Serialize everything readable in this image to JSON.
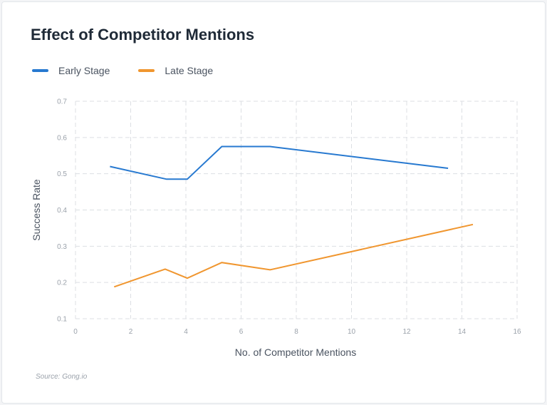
{
  "chart_data": {
    "type": "line",
    "title": "Effect of Competitor Mentions",
    "xlabel": "No. of Competitor Mentions",
    "ylabel": "Success Rate",
    "xlim": [
      0,
      16
    ],
    "ylim": [
      0.1,
      0.7
    ],
    "x_ticks": [
      "0",
      "2",
      "4",
      "6",
      "8",
      "10",
      "12",
      "14",
      "16"
    ],
    "y_ticks": [
      "0.1",
      "0.2",
      "0.3",
      "0.4",
      "0.5",
      "0.6",
      "0.7"
    ],
    "grid": true,
    "legend_position": "top-left",
    "series": [
      {
        "name": "Early Stage",
        "color": "#2779d0",
        "points": [
          [
            1.25,
            0.52
          ],
          [
            3.3,
            0.485
          ],
          [
            4.05,
            0.485
          ],
          [
            5.3,
            0.575
          ],
          [
            7.05,
            0.575
          ],
          [
            13.5,
            0.515
          ]
        ]
      },
      {
        "name": "Late Stage",
        "color": "#f0962f",
        "points": [
          [
            1.4,
            0.188
          ],
          [
            3.25,
            0.237
          ],
          [
            4.05,
            0.212
          ],
          [
            5.3,
            0.255
          ],
          [
            7.05,
            0.235
          ],
          [
            14.4,
            0.36
          ]
        ]
      }
    ]
  },
  "source": "Source: Gong.io"
}
